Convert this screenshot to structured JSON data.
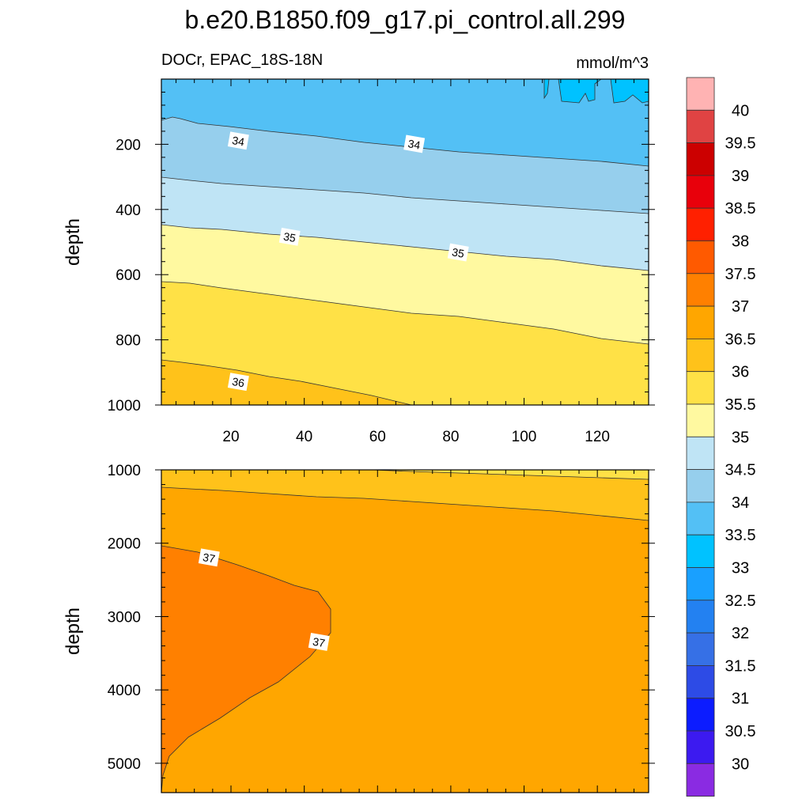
{
  "title": "b.e20.B1850.f09_g17.pi_control.all.299",
  "chart_data": {
    "type": "heatmap",
    "title": "b.e20.B1850.f09_g17.pi_control.all.299",
    "variable_label": "DOCr, EPAC_18S-18N",
    "units_label": "mmol/m^3",
    "ylabel": "depth",
    "colorbar": {
      "levels": [
        "40",
        "39.5",
        "39",
        "38.5",
        "38",
        "37.5",
        "37",
        "36.5",
        "36",
        "35.5",
        "35",
        "34.5",
        "34",
        "33.5",
        "33",
        "32.5",
        "32",
        "31.5",
        "31",
        "30.5",
        "30"
      ],
      "colors": [
        "#ffb3b3",
        "#e04343",
        "#cc0000",
        "#e8000b",
        "#ff2000",
        "#ff5a00",
        "#ff8000",
        "#ffa600",
        "#ffc21a",
        "#ffe146",
        "#fff9a0",
        "#bfe4f5",
        "#96cfed",
        "#53c0f5",
        "#00c2ff",
        "#19a0ff",
        "#2381f1",
        "#3670e6",
        "#2d4be6",
        "#0c1cff",
        "#3c1af0",
        "#8a2be2"
      ]
    },
    "panels": [
      {
        "name": "upper",
        "x_range": [
          1,
          134
        ],
        "y_range": [
          0,
          1000
        ],
        "y_reversed": true,
        "x_ticks": [
          "20",
          "40",
          "60",
          "80",
          "100",
          "120"
        ],
        "y_ticks": [
          "200",
          "400",
          "600",
          "800",
          "1000"
        ],
        "contour_labels": [
          {
            "text": "34",
            "x": 22,
            "y": 190
          },
          {
            "text": "34",
            "x": 70,
            "y": 200
          },
          {
            "text": "35",
            "x": 36,
            "y": 485
          },
          {
            "text": "35",
            "x": 82,
            "y": 533
          },
          {
            "text": "36",
            "x": 22,
            "y": 930
          }
        ]
      },
      {
        "name": "lower",
        "x_range": [
          1,
          134
        ],
        "y_range": [
          1000,
          5400
        ],
        "y_reversed": true,
        "y_ticks": [
          "1000",
          "2000",
          "3000",
          "4000",
          "5000"
        ],
        "contour_labels": [
          {
            "text": "37",
            "x": 14,
            "y": 2200
          },
          {
            "text": "37",
            "x": 44,
            "y": 3350
          }
        ]
      }
    ]
  }
}
